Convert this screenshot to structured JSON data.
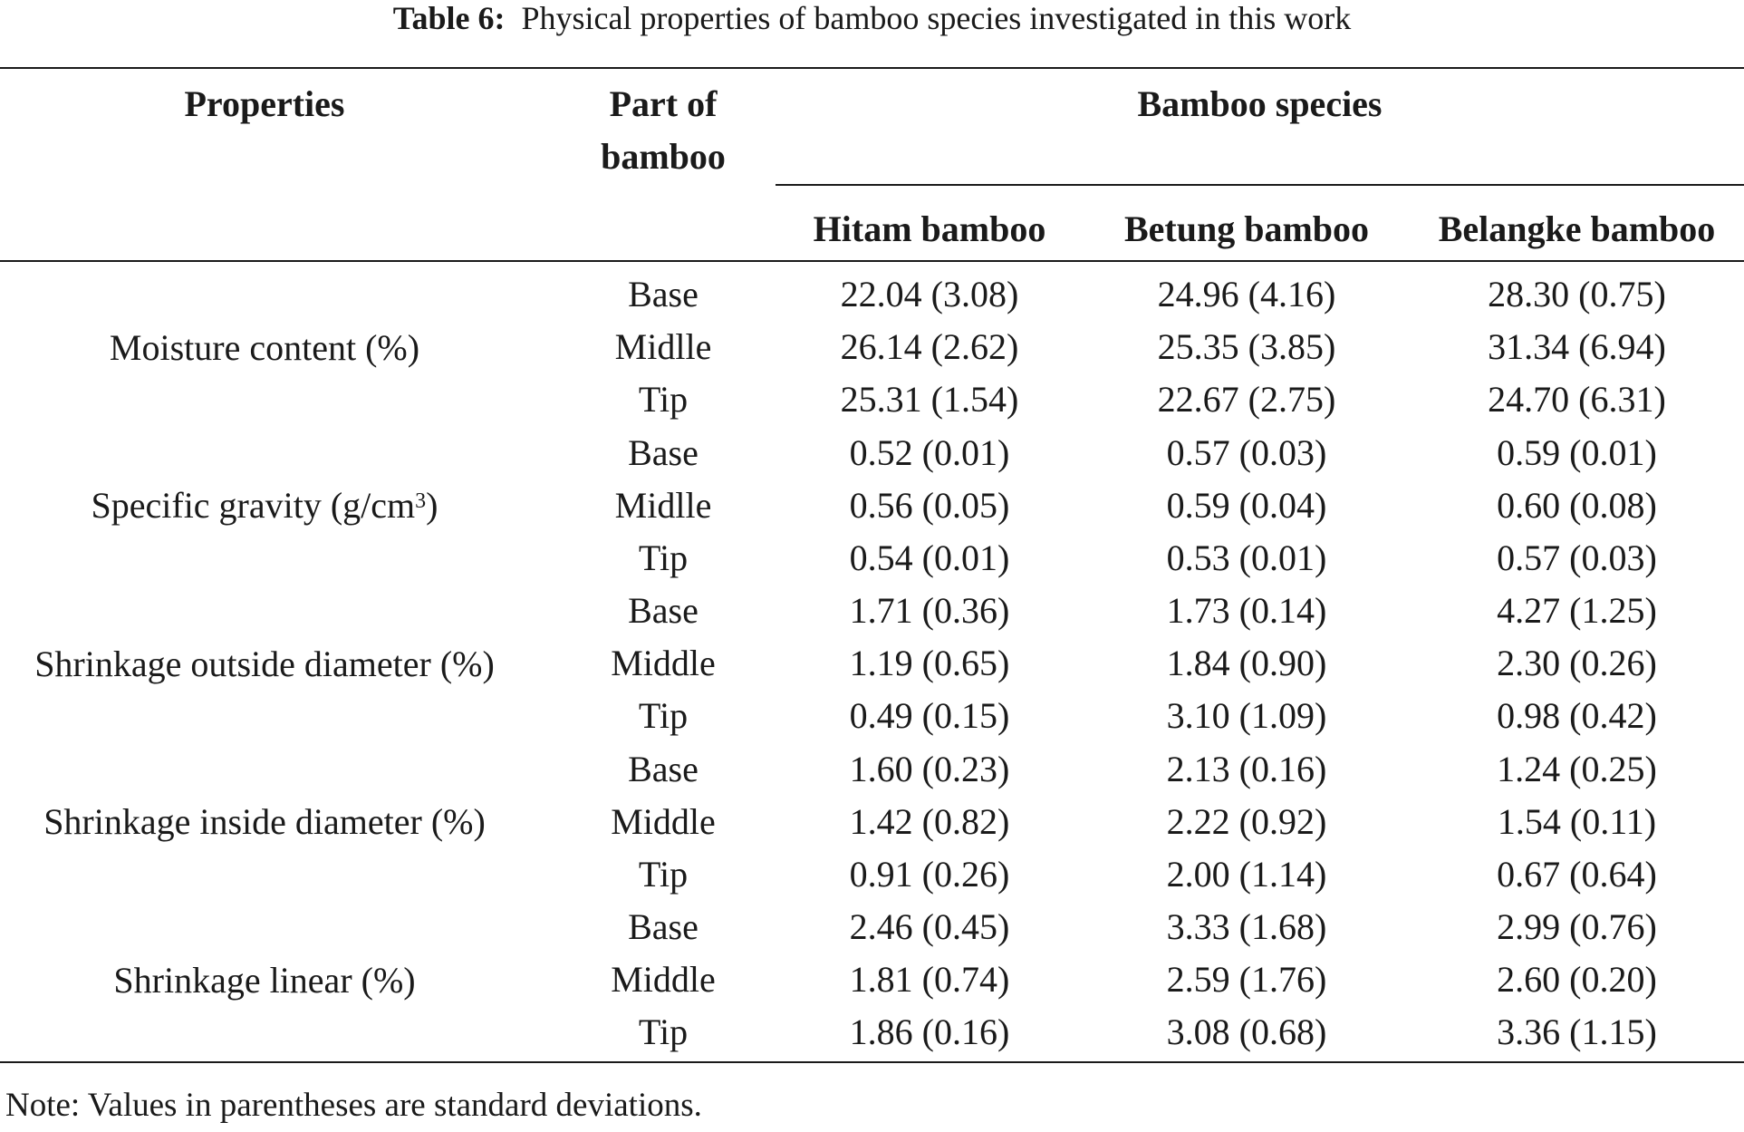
{
  "caption": {
    "label": "Table 6:",
    "text": "Physical properties of bamboo species investigated in this work"
  },
  "header": {
    "properties": "Properties",
    "part_line1": "Part of",
    "part_line2": "bamboo",
    "species_group": "Bamboo species",
    "species": [
      "Hitam bamboo",
      "Betung bamboo",
      "Belangke bamboo"
    ]
  },
  "groups": [
    {
      "property": "Moisture content (%)",
      "rows": [
        {
          "part": "Base",
          "values": [
            "22.04 (3.08)",
            "24.96 (4.16)",
            "28.30 (0.75)"
          ]
        },
        {
          "part": "Midlle",
          "values": [
            "26.14 (2.62)",
            "25.35 (3.85)",
            "31.34 (6.94)"
          ]
        },
        {
          "part": "Tip",
          "values": [
            "25.31 (1.54)",
            "22.67 (2.75)",
            "24.70 (6.31)"
          ]
        }
      ]
    },
    {
      "property": "Specific gravity (g/cm",
      "property_sup": "3",
      "property_tail": ")",
      "rows": [
        {
          "part": "Base",
          "values": [
            "0.52 (0.01)",
            "0.57 (0.03)",
            "0.59 (0.01)"
          ]
        },
        {
          "part": "Midlle",
          "values": [
            "0.56 (0.05)",
            "0.59 (0.04)",
            "0.60 (0.08)"
          ]
        },
        {
          "part": "Tip",
          "values": [
            "0.54 (0.01)",
            "0.53 (0.01)",
            "0.57 (0.03)"
          ]
        }
      ]
    },
    {
      "property": "Shrinkage outside diameter (%)",
      "rows": [
        {
          "part": "Base",
          "values": [
            "1.71 (0.36)",
            "1.73 (0.14)",
            "4.27 (1.25)"
          ]
        },
        {
          "part": "Middle",
          "values": [
            "1.19 (0.65)",
            "1.84 (0.90)",
            "2.30 (0.26)"
          ]
        },
        {
          "part": "Tip",
          "values": [
            "0.49 (0.15)",
            "3.10 (1.09)",
            "0.98 (0.42)"
          ]
        }
      ]
    },
    {
      "property": "Shrinkage inside diameter (%)",
      "rows": [
        {
          "part": "Base",
          "values": [
            "1.60 (0.23)",
            "2.13 (0.16)",
            "1.24 (0.25)"
          ]
        },
        {
          "part": "Middle",
          "values": [
            "1.42 (0.82)",
            "2.22 (0.92)",
            "1.54 (0.11)"
          ]
        },
        {
          "part": "Tip",
          "values": [
            "0.91 (0.26)",
            "2.00 (1.14)",
            "0.67 (0.64)"
          ]
        }
      ]
    },
    {
      "property": "Shrinkage linear (%)",
      "rows": [
        {
          "part": "Base",
          "values": [
            "2.46 (0.45)",
            "3.33 (1.68)",
            "2.99 (0.76)"
          ]
        },
        {
          "part": "Middle",
          "values": [
            "1.81 (0.74)",
            "2.59 (1.76)",
            "2.60 (0.20)"
          ]
        },
        {
          "part": "Tip",
          "values": [
            "1.86 (0.16)",
            "3.08 (0.68)",
            "3.36 (1.15)"
          ]
        }
      ]
    }
  ],
  "note": "Note: Values in parentheses are standard deviations."
}
